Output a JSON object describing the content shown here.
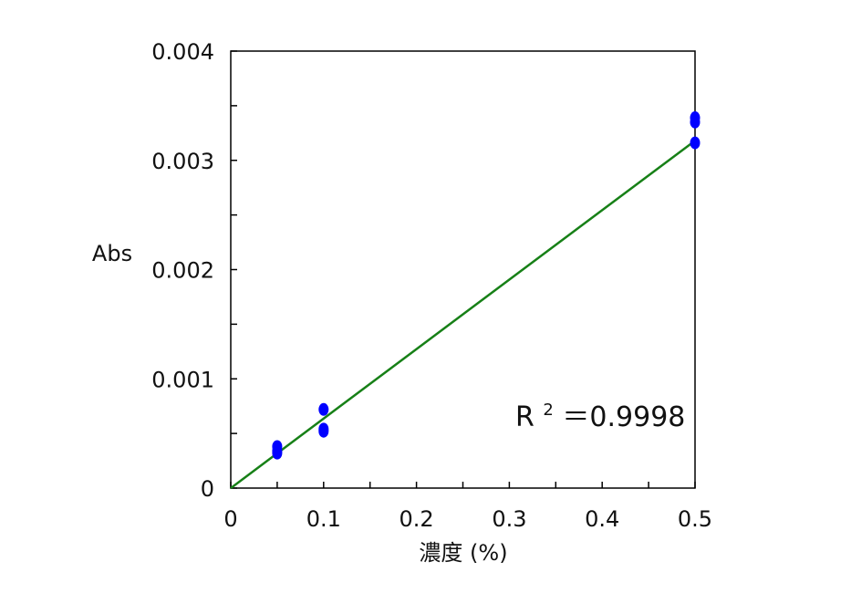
{
  "chart_data": {
    "type": "scatter",
    "xlabel": "濃度 (%)",
    "ylabel": "Abs",
    "xlim": [
      0,
      0.5
    ],
    "ylim": [
      0,
      0.004
    ],
    "x_ticks": [
      0,
      0.1,
      0.2,
      0.3,
      0.4,
      0.5
    ],
    "x_tick_labels": [
      "0",
      "0.1",
      "0.2",
      "0.3",
      "0.4",
      "0.5"
    ],
    "y_ticks": [
      0,
      0.001,
      0.002,
      0.003,
      0.004
    ],
    "y_tick_labels": [
      "0",
      "0.001",
      "0.002",
      "0.003",
      "0.004"
    ],
    "grid": false,
    "series": [
      {
        "points": [
          {
            "x": 0.05,
            "y": 0.00038
          },
          {
            "x": 0.05,
            "y": 0.00034
          },
          {
            "x": 0.05,
            "y": 0.00032
          },
          {
            "x": 0.1,
            "y": 0.00072
          },
          {
            "x": 0.1,
            "y": 0.00054
          },
          {
            "x": 0.1,
            "y": 0.00052
          },
          {
            "x": 0.5,
            "y": 0.00339
          },
          {
            "x": 0.5,
            "y": 0.00335
          },
          {
            "x": 0.5,
            "y": 0.00316
          }
        ],
        "color": "#0000ff"
      }
    ],
    "trendline": {
      "x_start": 0,
      "y_start": 0,
      "x_end": 0.5,
      "y_end": 0.00318,
      "color": "#178017"
    },
    "annotation": {
      "r_symbol": "R",
      "r_exponent": "2",
      "r_text": "＝0.9998"
    }
  }
}
